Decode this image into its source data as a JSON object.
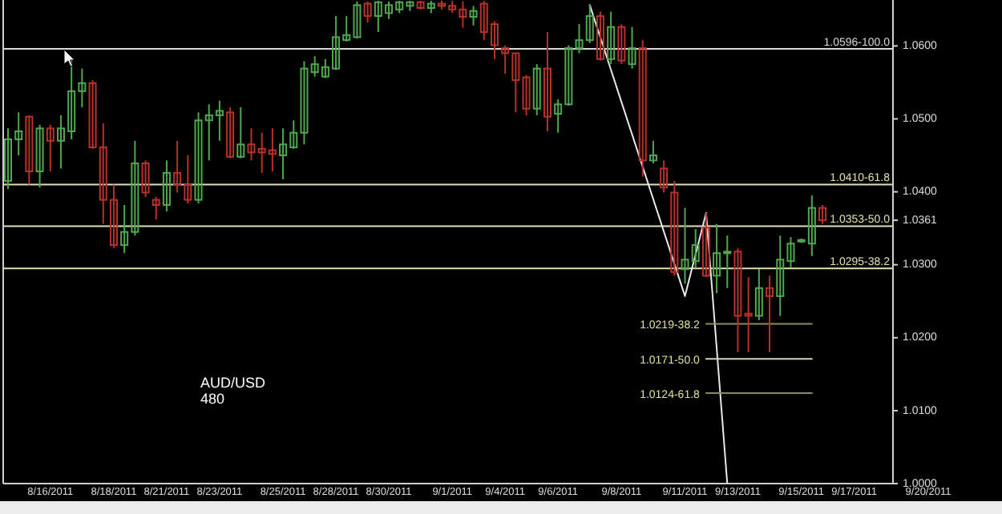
{
  "chart_data": {
    "type": "candlestick",
    "title": "AUD/USD",
    "subtitle": "480",
    "categories": [
      null,
      null,
      null,
      null,
      "8/16/2011",
      null,
      null,
      null,
      null,
      null,
      "8/18/2011",
      null,
      null,
      null,
      null,
      "8/21/2011",
      null,
      null,
      null,
      null,
      "8/23/2011",
      null,
      null,
      null,
      null,
      null,
      "8/25/2011",
      null,
      null,
      null,
      null,
      "8/28/2011",
      null,
      null,
      null,
      null,
      "8/30/2011",
      null,
      null,
      null,
      null,
      null,
      "9/1/2011",
      null,
      null,
      null,
      null,
      "9/4/2011",
      null,
      null,
      null,
      null,
      "9/6/2011",
      null,
      null,
      null,
      null,
      null,
      "9/8/2011",
      null,
      null,
      null,
      null,
      null,
      "9/11/2011",
      null,
      null,
      null,
      null,
      "9/13/2011",
      null,
      null,
      null,
      null,
      null,
      "9/15/2011",
      null,
      null,
      null,
      null,
      "9/17/2011",
      null,
      null,
      null,
      null,
      null,
      null,
      "9/20/2011"
    ],
    "ohlc": [
      [
        1.0415,
        1.0487,
        1.0404,
        1.0472
      ],
      [
        1.0472,
        1.0509,
        1.045,
        1.0483
      ],
      [
        1.0503,
        1.0505,
        1.041,
        1.0428
      ],
      [
        1.0428,
        1.0492,
        1.0406,
        1.0487
      ],
      [
        1.0487,
        1.0492,
        1.0428,
        1.047
      ],
      [
        1.047,
        1.0505,
        1.0432,
        1.0487
      ],
      [
        1.0483,
        1.0582,
        1.0472,
        1.0538
      ],
      [
        1.0538,
        1.0569,
        1.0516,
        1.0549
      ],
      [
        1.0549,
        1.0553,
        1.0459,
        1.0461
      ],
      [
        1.0461,
        1.0494,
        1.0356,
        1.0389
      ],
      [
        1.0389,
        1.041,
        1.0323,
        1.0327
      ],
      [
        1.0327,
        1.0382,
        1.0316,
        1.0345
      ],
      [
        1.0345,
        1.047,
        1.034,
        1.0439
      ],
      [
        1.0439,
        1.0443,
        1.0393,
        1.0399
      ],
      [
        1.0389,
        1.0393,
        1.0362,
        1.0382
      ],
      [
        1.0382,
        1.0443,
        1.0373,
        1.0426
      ],
      [
        1.0426,
        1.047,
        1.0399,
        1.041
      ],
      [
        1.041,
        1.045,
        1.0384,
        1.0389
      ],
      [
        1.0389,
        1.0509,
        1.0384,
        1.0498
      ],
      [
        1.0498,
        1.052,
        1.0443,
        1.0505
      ],
      [
        1.0505,
        1.0525,
        1.047,
        1.0511
      ],
      [
        1.0509,
        1.0516,
        1.0446,
        1.0448
      ],
      [
        1.0448,
        1.0516,
        1.0446,
        1.0465
      ],
      [
        1.0465,
        1.0487,
        1.0443,
        1.0454
      ],
      [
        1.0459,
        1.0481,
        1.0426,
        1.0454
      ],
      [
        1.0457,
        1.0487,
        1.0428,
        1.0452
      ],
      [
        1.045,
        1.0487,
        1.0417,
        1.0465
      ],
      [
        1.0461,
        1.0498,
        1.0459,
        1.0481
      ],
      [
        1.0481,
        1.0579,
        1.0465,
        1.0569
      ],
      [
        1.0564,
        1.0586,
        1.0558,
        1.0575
      ],
      [
        1.0558,
        1.0582,
        1.0556,
        1.0571
      ],
      [
        1.0569,
        1.0641,
        1.0567,
        1.0612
      ],
      [
        1.0608,
        1.0641,
        1.0606,
        1.0615
      ],
      [
        1.0612,
        1.0661,
        1.061,
        1.0656
      ],
      [
        1.0658,
        1.0661,
        1.0632,
        1.0641
      ],
      [
        1.0641,
        1.0662,
        1.0619,
        1.066
      ],
      [
        1.0645,
        1.0661,
        1.0637,
        1.0656
      ],
      [
        1.065,
        1.0662,
        1.0645,
        1.066
      ],
      [
        1.0655,
        1.0662,
        1.0648,
        1.066
      ],
      [
        1.066,
        1.0662,
        1.065,
        1.0652
      ],
      [
        1.0652,
        1.0662,
        1.0645,
        1.0658
      ],
      [
        1.0658,
        1.0662,
        1.065,
        1.0655
      ],
      [
        1.0655,
        1.0662,
        1.0645,
        1.065
      ],
      [
        1.065,
        1.0661,
        1.0625,
        1.064
      ],
      [
        1.064,
        1.0655,
        1.0628,
        1.0648
      ],
      [
        1.0658,
        1.0662,
        1.0608,
        1.0619
      ],
      [
        1.063,
        1.0634,
        1.0582,
        1.0601
      ],
      [
        1.0597,
        1.0601,
        1.0562,
        1.059
      ],
      [
        1.059,
        1.059,
        1.0509,
        1.0553
      ],
      [
        1.0557,
        1.056,
        1.0505,
        1.0514
      ],
      [
        1.0514,
        1.0575,
        1.0505,
        1.0569
      ],
      [
        1.0569,
        1.0619,
        1.0483,
        1.0503
      ],
      [
        1.0507,
        1.0527,
        1.0481,
        1.052
      ],
      [
        1.052,
        1.0601,
        1.0518,
        1.0597
      ],
      [
        1.0597,
        1.063,
        1.059,
        1.0608
      ],
      [
        1.0608,
        1.0656,
        1.0604,
        1.0641
      ],
      [
        1.0641,
        1.0647,
        1.058,
        1.0582
      ],
      [
        1.0582,
        1.0647,
        1.0575,
        1.0626
      ],
      [
        1.0626,
        1.063,
        1.0575,
        1.058
      ],
      [
        1.0575,
        1.0626,
        1.0569,
        1.0597
      ],
      [
        1.0597,
        1.0608,
        1.0421,
        1.0443
      ],
      [
        1.0443,
        1.047,
        1.0439,
        1.045
      ],
      [
        1.0432,
        1.0443,
        1.0399,
        1.0406
      ],
      [
        1.0399,
        1.0415,
        1.0285,
        1.029
      ],
      [
        1.0294,
        1.0378,
        1.0274,
        1.0307
      ],
      [
        1.0305,
        1.0349,
        1.0296,
        1.0327
      ],
      [
        1.0351,
        1.0371,
        1.0283,
        1.0285
      ],
      [
        1.0285,
        1.0356,
        1.0261,
        1.0316
      ],
      [
        1.0316,
        1.034,
        1.0268,
        1.0318
      ],
      [
        1.0318,
        1.0323,
        1.018,
        1.023
      ],
      [
        1.0233,
        1.0283,
        1.018,
        1.023
      ],
      [
        1.023,
        1.0294,
        1.0224,
        1.0268
      ],
      [
        1.0268,
        1.0285,
        1.018,
        1.0257
      ],
      [
        1.0257,
        1.034,
        1.023,
        1.0307
      ],
      [
        1.0305,
        1.0338,
        1.0296,
        1.0329
      ],
      [
        1.0332,
        1.0336,
        1.033,
        1.0334
      ],
      [
        1.0329,
        1.0395,
        1.0312,
        1.0378
      ],
      [
        1.0378,
        1.0382,
        1.0356,
        1.0361
      ],
      null,
      null,
      null,
      null,
      null,
      null,
      null,
      null,
      null,
      null
    ],
    "series": [
      {
        "type": "line",
        "color": "#e8e8e8",
        "values": [
          null,
          null,
          null,
          null,
          null,
          null,
          null,
          null,
          null,
          null,
          null,
          null,
          null,
          null,
          null,
          null,
          null,
          null,
          null,
          null,
          null,
          null,
          null,
          null,
          null,
          null,
          null,
          null,
          null,
          null,
          null,
          null,
          null,
          null,
          null,
          null,
          null,
          null,
          null,
          null,
          null,
          null,
          null,
          null,
          null,
          null,
          null,
          null,
          null,
          null,
          null,
          null,
          null,
          null,
          null,
          1.0656,
          null,
          null,
          null,
          null,
          null,
          null,
          null,
          null,
          1.0257,
          null,
          1.0371,
          null,
          1.0,
          null,
          null,
          null,
          null,
          null,
          null,
          null,
          null,
          null,
          null,
          null,
          null,
          null,
          null,
          null,
          null,
          null,
          null,
          null
        ]
      },
      {
        "type": "line",
        "name": "1.0219-38.2",
        "color": "#8c8c64",
        "values": [
          null,
          null,
          null,
          null,
          null,
          null,
          null,
          null,
          null,
          null,
          null,
          null,
          null,
          null,
          null,
          null,
          null,
          null,
          null,
          null,
          null,
          null,
          null,
          null,
          null,
          null,
          null,
          null,
          null,
          null,
          null,
          null,
          null,
          null,
          null,
          null,
          null,
          null,
          null,
          null,
          null,
          null,
          null,
          null,
          null,
          null,
          null,
          null,
          null,
          null,
          null,
          null,
          null,
          null,
          null,
          null,
          null,
          null,
          null,
          null,
          null,
          null,
          null,
          null,
          null,
          null,
          1.0219,
          1.0219,
          1.0219,
          1.0219,
          1.0219,
          1.0219,
          1.0219,
          1.0219,
          1.0219,
          1.0219,
          1.0219,
          null,
          null,
          null,
          null,
          null,
          null,
          null,
          null,
          null,
          null,
          null
        ]
      },
      {
        "type": "line",
        "name": "1.0171-50.0",
        "color": "#d4d4b0",
        "values": [
          null,
          null,
          null,
          null,
          null,
          null,
          null,
          null,
          null,
          null,
          null,
          null,
          null,
          null,
          null,
          null,
          null,
          null,
          null,
          null,
          null,
          null,
          null,
          null,
          null,
          null,
          null,
          null,
          null,
          null,
          null,
          null,
          null,
          null,
          null,
          null,
          null,
          null,
          null,
          null,
          null,
          null,
          null,
          null,
          null,
          null,
          null,
          null,
          null,
          null,
          null,
          null,
          null,
          null,
          null,
          null,
          null,
          null,
          null,
          null,
          null,
          null,
          null,
          null,
          null,
          null,
          1.0171,
          1.0171,
          1.0171,
          1.0171,
          1.0171,
          1.0171,
          1.0171,
          1.0171,
          1.0171,
          1.0171,
          1.0171,
          null,
          null,
          null,
          null,
          null,
          null,
          null,
          null,
          null,
          null,
          null
        ]
      },
      {
        "type": "line",
        "name": "1.0124-61.8",
        "color": "#8c8c64",
        "values": [
          null,
          null,
          null,
          null,
          null,
          null,
          null,
          null,
          null,
          null,
          null,
          null,
          null,
          null,
          null,
          null,
          null,
          null,
          null,
          null,
          null,
          null,
          null,
          null,
          null,
          null,
          null,
          null,
          null,
          null,
          null,
          null,
          null,
          null,
          null,
          null,
          null,
          null,
          null,
          null,
          null,
          null,
          null,
          null,
          null,
          null,
          null,
          null,
          null,
          null,
          null,
          null,
          null,
          null,
          null,
          null,
          null,
          null,
          null,
          null,
          null,
          null,
          null,
          null,
          null,
          null,
          1.0124,
          1.0124,
          1.0124,
          1.0124,
          1.0124,
          1.0124,
          1.0124,
          1.0124,
          1.0124,
          1.0124,
          1.0124,
          null,
          null,
          null,
          null,
          null,
          null,
          null,
          null,
          null,
          null,
          null
        ]
      }
    ],
    "ylim": [
      1.0,
      1.0663
    ],
    "yticks": [
      {
        "value": 1.0,
        "label": "1.0000"
      },
      {
        "value": 1.01,
        "label": "1.0100"
      },
      {
        "value": 1.02,
        "label": "1.0200"
      },
      {
        "value": 1.03,
        "label": "1.0300"
      },
      {
        "value": 1.0361,
        "label": "1.0361"
      },
      {
        "value": 1.04,
        "label": "1.0400"
      },
      {
        "value": 1.05,
        "label": "1.0500"
      },
      {
        "value": 1.06,
        "label": "1.0600"
      }
    ],
    "ref_lines": [
      {
        "axis": "y",
        "value": 1.0596,
        "label": "1.0596-100.0",
        "color": "#d8d8d8"
      },
      {
        "axis": "y",
        "value": 1.041,
        "label": "1.0410-61.8",
        "color": "#e0e0b0"
      },
      {
        "axis": "y",
        "value": 1.0353,
        "label": "1.0353-50.0",
        "color": "#e0e0b0"
      },
      {
        "axis": "y",
        "value": 1.0295,
        "label": "1.0295-38.2",
        "color": "#e0e0b0"
      }
    ]
  }
}
